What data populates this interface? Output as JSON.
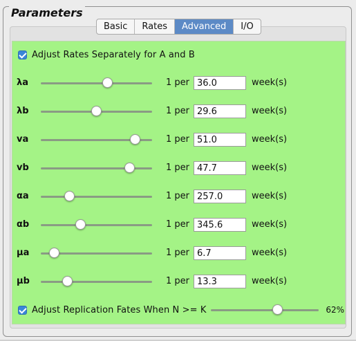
{
  "panel_title": "Parameters",
  "tabs": [
    {
      "label": "Basic",
      "active": false
    },
    {
      "label": "Rates",
      "active": false
    },
    {
      "label": "Advanced",
      "active": true
    },
    {
      "label": "I/O",
      "active": false
    }
  ],
  "adjust_rates": {
    "label": "Adjust Rates Separately for A and B",
    "checked": true
  },
  "rate_rows": [
    {
      "param": "λa",
      "per_label": "1 per",
      "value": "36.0",
      "unit": "week(s)",
      "slider_level": 0.6
    },
    {
      "param": "λb",
      "per_label": "1 per",
      "value": "29.6",
      "unit": "week(s)",
      "slider_level": 0.5
    },
    {
      "param": "va",
      "per_label": "1 per",
      "value": "51.0",
      "unit": "week(s)",
      "slider_level": 0.85
    },
    {
      "param": "vb",
      "per_label": "1 per",
      "value": "47.7",
      "unit": "week(s)",
      "slider_level": 0.8
    },
    {
      "param": "αa",
      "per_label": "1 per",
      "value": "257.0",
      "unit": "week(s)",
      "slider_level": 0.26
    },
    {
      "param": "αb",
      "per_label": "1 per",
      "value": "345.6",
      "unit": "week(s)",
      "slider_level": 0.36
    },
    {
      "param": "μa",
      "per_label": "1 per",
      "value": "6.7",
      "unit": "week(s)",
      "slider_level": 0.12
    },
    {
      "param": "μb",
      "per_label": "1 per",
      "value": "13.3",
      "unit": "week(s)",
      "slider_level": 0.24
    }
  ],
  "replication": {
    "label": "Adjust Replication Fates When N >= K",
    "checked": true,
    "percent_label": "62%",
    "slider_level": 0.62
  },
  "colors": {
    "panel_green": "#a4f386",
    "active_tab": "#5c8ac6",
    "checkbox_blue": "#3a86d8"
  },
  "icons": {
    "checkbox": "checkmark-icon",
    "slider": "slider-knob-icon"
  }
}
